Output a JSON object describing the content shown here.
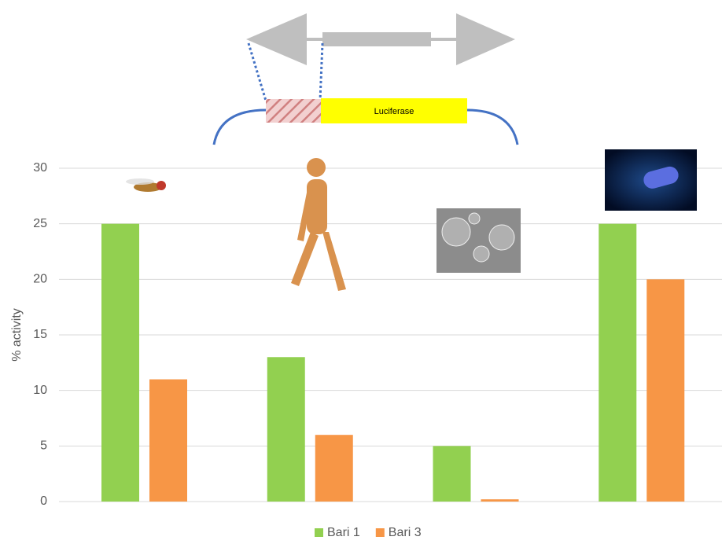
{
  "chart_data": {
    "type": "bar",
    "annotation": "Luciferase",
    "ylabel": "% activity",
    "categories": [
      null,
      null,
      null,
      null
    ],
    "series": [
      {
        "name": "Bari 1",
        "color": "#92d050",
        "values": [
          25,
          13,
          5,
          25
        ]
      },
      {
        "name": "Bari 3",
        "color": "#f79646",
        "values": [
          11,
          6,
          0.2,
          20
        ]
      }
    ],
    "ylim": [
      0,
      30
    ],
    "yticks": [
      0,
      5,
      10,
      15,
      20,
      25,
      30
    ],
    "grid": true,
    "legend": "bottom"
  }
}
